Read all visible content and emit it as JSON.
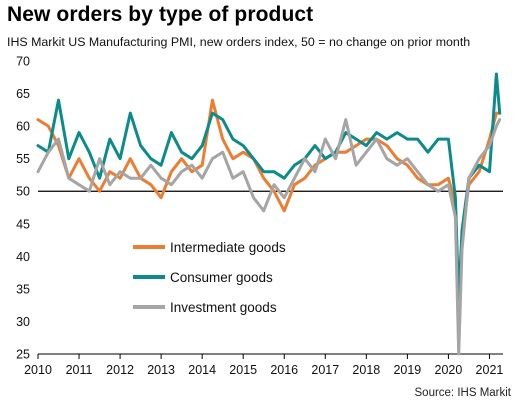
{
  "title": "New orders by type of product",
  "subtitle": "IHS Markit US Manufacturing PMI, new orders index, 50 = no change on prior month",
  "source": "Source: IHS Markit",
  "chart_data": {
    "type": "line",
    "title": "New orders by type of product",
    "ylim": [
      25,
      70
    ],
    "yticks": [
      25,
      30,
      35,
      40,
      45,
      50,
      55,
      60,
      65,
      70
    ],
    "xlim": [
      2010,
      2021.33
    ],
    "xticks": [
      2010,
      2011,
      2012,
      2013,
      2014,
      2015,
      2016,
      2017,
      2018,
      2019,
      2020,
      2021
    ],
    "reference_line": 50,
    "legend_position": "center-left",
    "grid": false,
    "x_unit": "year",
    "series": [
      {
        "name": "Intermediate goods",
        "color": "#ed7d31",
        "x": [
          2010.0,
          2010.25,
          2010.5,
          2010.75,
          2011.0,
          2011.25,
          2011.5,
          2011.75,
          2012.0,
          2012.25,
          2012.5,
          2012.75,
          2013.0,
          2013.25,
          2013.5,
          2013.75,
          2014.0,
          2014.25,
          2014.5,
          2014.75,
          2015.0,
          2015.25,
          2015.5,
          2015.75,
          2016.0,
          2016.25,
          2016.5,
          2016.75,
          2017.0,
          2017.25,
          2017.5,
          2017.75,
          2018.0,
          2018.25,
          2018.5,
          2018.75,
          2019.0,
          2019.25,
          2019.5,
          2019.75,
          2020.0,
          2020.17,
          2020.25,
          2020.33,
          2020.5,
          2020.75,
          2021.0,
          2021.17,
          2021.25
        ],
        "values": [
          61,
          60,
          57,
          52,
          55,
          52,
          50,
          53,
          52,
          55,
          52,
          51,
          49,
          53,
          55,
          53,
          54,
          64,
          58,
          55,
          56,
          55,
          52,
          50,
          47,
          51,
          52,
          54,
          55,
          56,
          56,
          57,
          58,
          58,
          57,
          55,
          54,
          52,
          51,
          51,
          52,
          48,
          30,
          43,
          51,
          53,
          58,
          62,
          62
        ]
      },
      {
        "name": "Consumer goods",
        "color": "#0b8c8a",
        "x": [
          2010.0,
          2010.25,
          2010.5,
          2010.75,
          2011.0,
          2011.25,
          2011.5,
          2011.75,
          2012.0,
          2012.25,
          2012.5,
          2012.75,
          2013.0,
          2013.25,
          2013.5,
          2013.75,
          2014.0,
          2014.25,
          2014.5,
          2014.75,
          2015.0,
          2015.25,
          2015.5,
          2015.75,
          2016.0,
          2016.25,
          2016.5,
          2016.75,
          2017.0,
          2017.25,
          2017.5,
          2017.75,
          2018.0,
          2018.25,
          2018.5,
          2018.75,
          2019.0,
          2019.25,
          2019.5,
          2019.75,
          2020.0,
          2020.17,
          2020.25,
          2020.33,
          2020.5,
          2020.75,
          2021.0,
          2021.17,
          2021.25
        ],
        "values": [
          57,
          56,
          64,
          55,
          59,
          56,
          52,
          58,
          55,
          62,
          57,
          55,
          54,
          59,
          56,
          55,
          57,
          62,
          61,
          58,
          57,
          55,
          53,
          53,
          52,
          54,
          55,
          57,
          55,
          56,
          59,
          58,
          57,
          59,
          58,
          59,
          58,
          58,
          56,
          58,
          58,
          49,
          33,
          44,
          52,
          54,
          53,
          68,
          62
        ]
      },
      {
        "name": "Investment goods",
        "color": "#a5a5a5",
        "x": [
          2010.0,
          2010.25,
          2010.5,
          2010.75,
          2011.0,
          2011.25,
          2011.5,
          2011.75,
          2012.0,
          2012.25,
          2012.5,
          2012.75,
          2013.0,
          2013.25,
          2013.5,
          2013.75,
          2014.0,
          2014.25,
          2014.5,
          2014.75,
          2015.0,
          2015.25,
          2015.5,
          2015.75,
          2016.0,
          2016.25,
          2016.5,
          2016.75,
          2017.0,
          2017.25,
          2017.5,
          2017.75,
          2018.0,
          2018.25,
          2018.5,
          2018.75,
          2019.0,
          2019.25,
          2019.5,
          2019.75,
          2020.0,
          2020.17,
          2020.25,
          2020.33,
          2020.5,
          2020.75,
          2021.0,
          2021.17,
          2021.25
        ],
        "values": [
          53,
          56,
          58,
          52,
          51,
          50,
          55,
          51,
          53,
          52,
          52,
          54,
          52,
          51,
          53,
          54,
          52,
          55,
          56,
          52,
          53,
          49,
          47,
          51,
          49,
          52,
          55,
          53,
          58,
          55,
          61,
          54,
          56,
          58,
          55,
          54,
          55,
          53,
          51,
          50,
          51,
          46,
          25,
          41,
          52,
          55,
          57,
          60,
          61
        ]
      }
    ]
  }
}
